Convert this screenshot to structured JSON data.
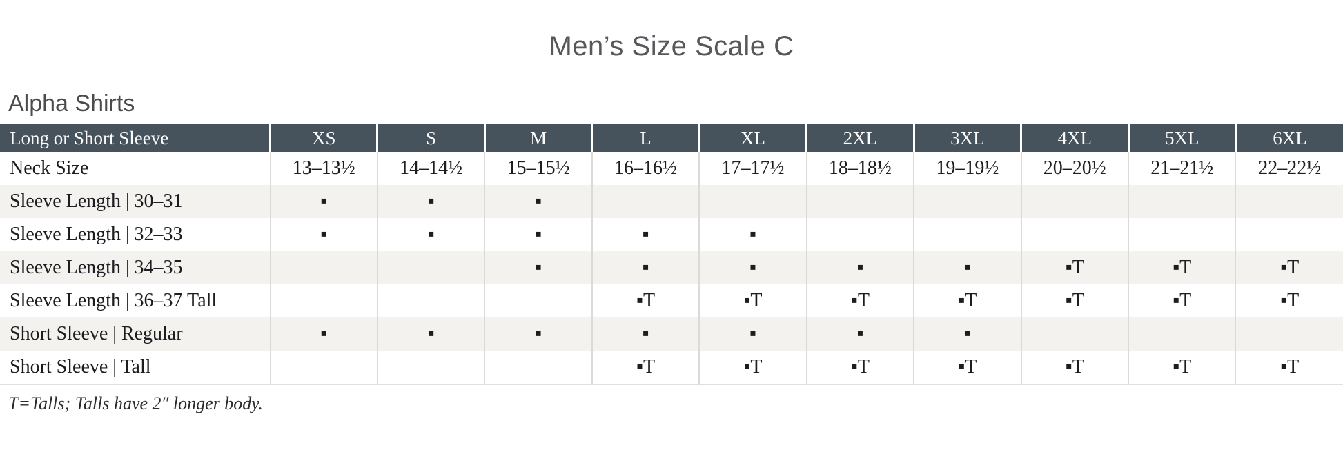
{
  "page": {
    "title": "Men’s Size Scale C",
    "section_title": "Alpha Shirts",
    "footnote": "T=Talls; Talls have 2″ longer body."
  },
  "legend": {
    "available_marker": "▪",
    "tall_marker": "▪T"
  },
  "colors": {
    "header_bg": "#46535d",
    "header_text": "#fbfbfb",
    "row_alt_bg": "#f4f2ef",
    "column_line": "#dcdad7",
    "body_text": "#1d1d1f",
    "title_color": "#56585b",
    "section_color": "#4a4b4d"
  },
  "table": {
    "header": {
      "label": "Long or Short Sleeve",
      "sizes": [
        "XS",
        "S",
        "M",
        "L",
        "XL",
        "2XL",
        "3XL",
        "4XL",
        "5XL",
        "6XL"
      ]
    },
    "rows": [
      {
        "label": "Neck Size",
        "cells": [
          "13–13½",
          "14–14½",
          "15–15½",
          "16–16½",
          "17–17½",
          "18–18½",
          "19–19½",
          "20–20½",
          "21–21½",
          "22–22½"
        ]
      },
      {
        "label": "Sleeve Length | 30–31",
        "cells": [
          "▪",
          "▪",
          "▪",
          "",
          "",
          "",
          "",
          "",
          "",
          ""
        ]
      },
      {
        "label": "Sleeve Length | 32–33",
        "cells": [
          "▪",
          "▪",
          "▪",
          "▪",
          "▪",
          "",
          "",
          "",
          "",
          ""
        ]
      },
      {
        "label": "Sleeve Length | 34–35",
        "cells": [
          "",
          "",
          "▪",
          "▪",
          "▪",
          "▪",
          "▪",
          "▪T",
          "▪T",
          "▪T"
        ]
      },
      {
        "label": "Sleeve Length | 36–37 Tall",
        "cells": [
          "",
          "",
          "",
          "▪T",
          "▪T",
          "▪T",
          "▪T",
          "▪T",
          "▪T",
          "▪T"
        ]
      },
      {
        "label": "Short Sleeve | Regular",
        "cells": [
          "▪",
          "▪",
          "▪",
          "▪",
          "▪",
          "▪",
          "▪",
          "",
          "",
          ""
        ]
      },
      {
        "label": "Short Sleeve | Tall",
        "cells": [
          "",
          "",
          "",
          "▪T",
          "▪T",
          "▪T",
          "▪T",
          "▪T",
          "▪T",
          "▪T"
        ]
      }
    ]
  }
}
